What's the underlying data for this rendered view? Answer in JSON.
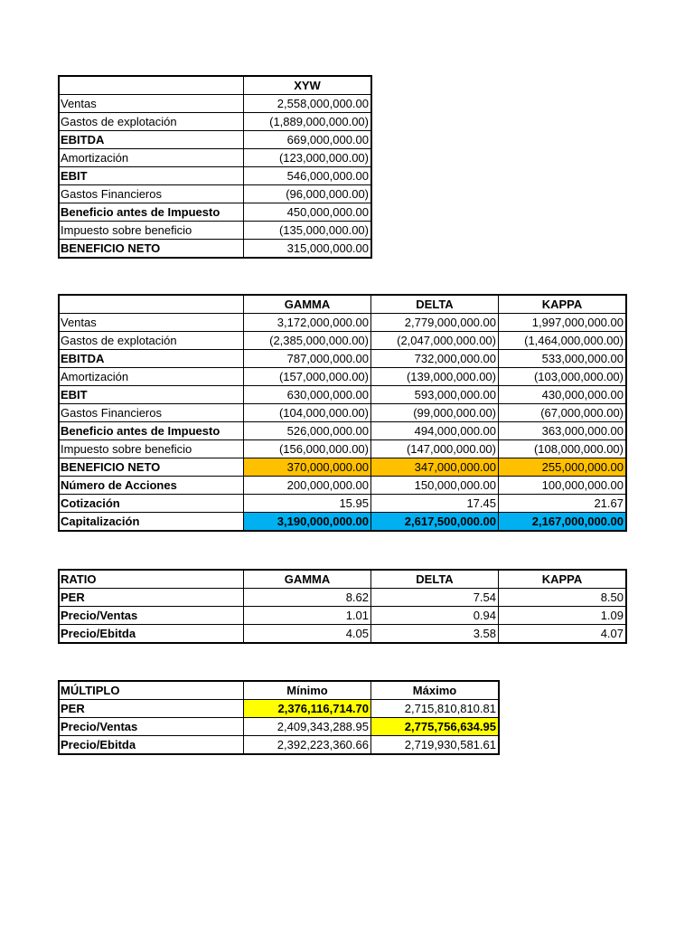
{
  "tables": [
    {
      "columns": [
        "XYW"
      ],
      "rows": [
        [
          "Ventas",
          "2,558,000,000.00"
        ],
        [
          "Gastos de explotación",
          "(1,889,000,000.00)"
        ],
        [
          "EBITDA",
          "669,000,000.00"
        ],
        [
          "Amortización",
          "(123,000,000.00)"
        ],
        [
          "EBIT",
          "546,000,000.00"
        ],
        [
          "Gastos Financieros",
          "(96,000,000.00)"
        ],
        [
          "Beneficio antes de Impuesto",
          "450,000,000.00"
        ],
        [
          "Impuesto sobre beneficio",
          "(135,000,000.00)"
        ],
        [
          "BENEFICIO NETO",
          "315,000,000.00"
        ]
      ]
    },
    {
      "columns": [
        "GAMMA",
        "DELTA",
        "KAPPA"
      ],
      "rows": [
        [
          "Ventas",
          "3,172,000,000.00",
          "2,779,000,000.00",
          "1,997,000,000.00"
        ],
        [
          "Gastos de explotación",
          "(2,385,000,000.00)",
          "(2,047,000,000.00)",
          "(1,464,000,000.00)"
        ],
        [
          "EBITDA",
          "787,000,000.00",
          "732,000,000.00",
          "533,000,000.00"
        ],
        [
          "Amortización",
          "(157,000,000.00)",
          "(139,000,000.00)",
          "(103,000,000.00)"
        ],
        [
          "EBIT",
          "630,000,000.00",
          "593,000,000.00",
          "430,000,000.00"
        ],
        [
          "Gastos Financieros",
          "(104,000,000.00)",
          "(99,000,000.00)",
          "(67,000,000.00)"
        ],
        [
          "Beneficio antes de Impuesto",
          "526,000,000.00",
          "494,000,000.00",
          "363,000,000.00"
        ],
        [
          "Impuesto sobre beneficio",
          "(156,000,000.00)",
          "(147,000,000.00)",
          "(108,000,000.00)"
        ],
        [
          "BENEFICIO NETO",
          "370,000,000.00",
          "347,000,000.00",
          "255,000,000.00"
        ],
        [
          "Número de Acciones",
          "200,000,000.00",
          "150,000,000.00",
          "100,000,000.00"
        ],
        [
          "Cotización",
          "15.95",
          "17.45",
          "21.67"
        ],
        [
          "Capitalización",
          "3,190,000,000.00",
          "2,617,500,000.00",
          "2,167,000,000.00"
        ]
      ]
    },
    {
      "corner": "RATIO",
      "columns": [
        "GAMMA",
        "DELTA",
        "KAPPA"
      ],
      "rows": [
        [
          "PER",
          "8.62",
          "7.54",
          "8.50"
        ],
        [
          "Precio/Ventas",
          "1.01",
          "0.94",
          "1.09"
        ],
        [
          "Precio/Ebitda",
          "4.05",
          "3.58",
          "4.07"
        ]
      ]
    },
    {
      "corner": "MÚLTIPLO",
      "columns": [
        "Mínimo",
        "Máximo"
      ],
      "rows": [
        [
          "PER",
          "2,376,116,714.70",
          "2,715,810,810.81"
        ],
        [
          "Precio/Ventas",
          "2,409,343,288.95",
          "2,775,756,634.95"
        ],
        [
          "Precio/Ebitda",
          "2,392,223,360.66",
          "2,719,930,581.61"
        ]
      ]
    }
  ]
}
